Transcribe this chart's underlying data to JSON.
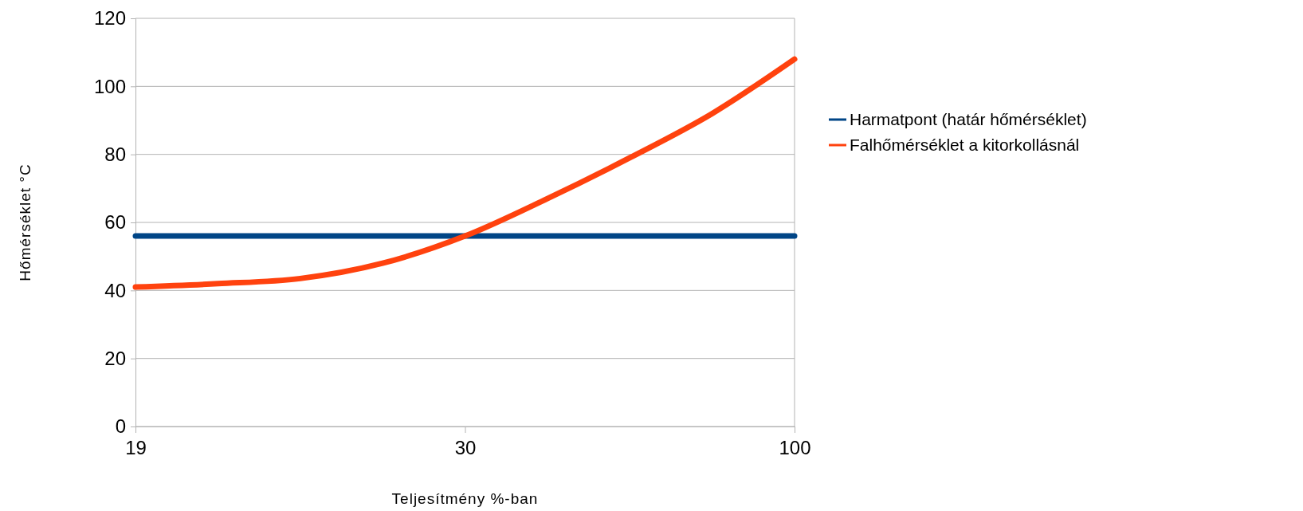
{
  "chart_data": {
    "type": "line",
    "xlabel": "Teljesítmény %-ban",
    "ylabel": "Hőmérséklet °C",
    "categories": [
      "19",
      null,
      null,
      null,
      "30",
      null,
      null,
      null,
      "100"
    ],
    "series": [
      {
        "name": "Harmatpont (határ hőmérséklet)",
        "color": "#004586",
        "values": [
          56,
          56,
          56,
          56,
          56,
          56,
          56,
          56,
          56
        ]
      },
      {
        "name": "Falhőmérséklet a kitorkollásnál",
        "color": "#ff420e",
        "values": [
          41,
          42,
          43.5,
          48,
          56,
          67,
          79,
          92,
          108
        ]
      }
    ],
    "ylim": [
      0,
      120
    ],
    "yticks": [
      0,
      20,
      40,
      60,
      80,
      100,
      120
    ],
    "grid": "y",
    "legend": "right",
    "marker": "none",
    "line_style": "solid"
  }
}
